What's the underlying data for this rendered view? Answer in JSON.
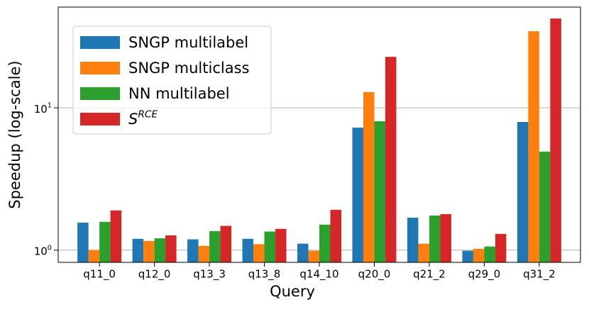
{
  "chart_data": {
    "type": "bar",
    "log_scale": true,
    "grid": true,
    "x_label": "Query",
    "y_label": "Speedup (log-scale)",
    "categories": [
      "q11_0",
      "q12_0",
      "q13_3",
      "q13_8",
      "q14_10",
      "q20_0",
      "q21_2",
      "q29_0",
      "q31_2"
    ],
    "series": [
      {
        "name": "SNGP multilabel",
        "color": "#1f77b4",
        "values": [
          1.56,
          1.2,
          1.19,
          1.2,
          1.11,
          7.26,
          1.69,
          0.99,
          7.95
        ]
      },
      {
        "name": "SNGP multiclass",
        "color": "#ff7f0e",
        "values": [
          1.0,
          1.16,
          1.07,
          1.1,
          0.99,
          12.9,
          1.11,
          1.02,
          34.5
        ]
      },
      {
        "name": "NN multilabel",
        "color": "#2ca02c",
        "values": [
          1.58,
          1.21,
          1.36,
          1.35,
          1.51,
          8.04,
          1.75,
          1.06,
          4.92
        ]
      },
      {
        "name": "S^RCE",
        "color": "#d62728",
        "values": [
          1.9,
          1.27,
          1.48,
          1.41,
          1.92,
          22.8,
          1.79,
          1.3,
          42.4
        ]
      }
    ],
    "ylim": [
      0.82,
      51
    ],
    "yticks": [
      {
        "value": 1,
        "label": "10^0"
      },
      {
        "value": 10,
        "label": "10^1"
      }
    ],
    "legend": "upper left"
  }
}
